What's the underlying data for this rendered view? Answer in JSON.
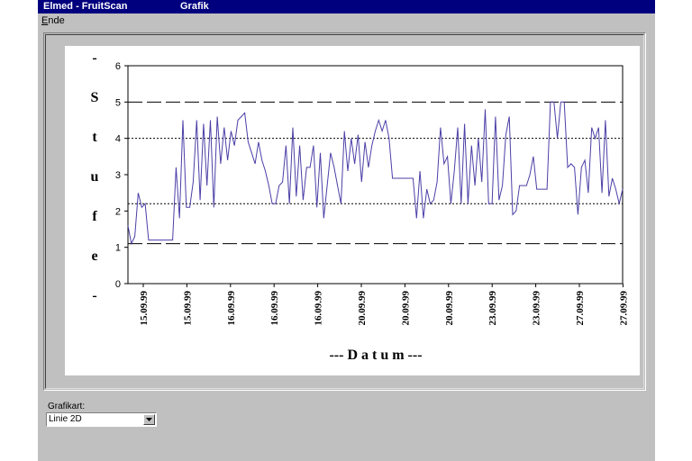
{
  "window": {
    "app_title": "Elmed - FruitScan",
    "section_title": "Grafik"
  },
  "menu": {
    "items": [
      {
        "label": "Ende",
        "mnemonic": "E",
        "rest": "nde"
      }
    ]
  },
  "chart_type_selector": {
    "label": "Grafikart:",
    "value": "Linie 2D"
  },
  "chart_data": {
    "type": "line",
    "ylabel": "- S t u f e -",
    "xlabel": "--- D a t u m ---",
    "ylim": [
      0,
      6
    ],
    "y_ticks": [
      "0",
      "1",
      "2",
      "3",
      "4",
      "5",
      "6"
    ],
    "x_tick_labels": [
      "15.09.99",
      "15.09.99",
      "16.09.99",
      "16.09.99",
      "16.09.99",
      "20.09.99",
      "20.09.99",
      "20.09.99",
      "23.09.99",
      "23.09.99",
      "27.09.99",
      "27.09.99"
    ],
    "reference_lines": [
      {
        "y": 5.0,
        "style": "dashed"
      },
      {
        "y": 4.0,
        "style": "dotted"
      },
      {
        "y": 2.2,
        "style": "dotted"
      },
      {
        "y": 1.1,
        "style": "dashed"
      }
    ],
    "line_color": "#4b3fa6",
    "grid": false,
    "series": [
      {
        "values": [
          1.6,
          1.1,
          1.3,
          2.5,
          2.1,
          2.2,
          1.2,
          1.2,
          1.2,
          1.2,
          1.2,
          1.2,
          1.2,
          1.2,
          3.2,
          1.8,
          4.5,
          2.1,
          2.1,
          2.8,
          4.5,
          2.3,
          4.4,
          2.7,
          4.5,
          2.1,
          4.6,
          3.3,
          4.3,
          3.4,
          4.2,
          3.8,
          4.5,
          4.6,
          4.7,
          3.9,
          3.6,
          3.3,
          3.9,
          3.4,
          3.1,
          2.7,
          2.2,
          2.2,
          2.7,
          2.8,
          3.8,
          2.2,
          4.3,
          2.4,
          3.8,
          2.3,
          3.2,
          3.2,
          3.8,
          2.1,
          3.6,
          1.8,
          2.7,
          3.6,
          3.2,
          2.7,
          2.2,
          4.2,
          3.1,
          4.0,
          3.3,
          4.1,
          2.8,
          3.9,
          3.2,
          3.8,
          4.2,
          4.5,
          4.2,
          4.5,
          4.0,
          2.9,
          2.9,
          2.9,
          2.9,
          2.9,
          2.9,
          2.9,
          1.8,
          3.1,
          1.8,
          2.6,
          2.2,
          2.3,
          2.8,
          4.3,
          3.3,
          3.5,
          2.2,
          3.1,
          4.3,
          2.2,
          4.4,
          2.2,
          3.8,
          2.7,
          4.0,
          2.8,
          4.8,
          2.2,
          2.2,
          4.6,
          2.3,
          2.7,
          4.1,
          4.6,
          1.9,
          2.0,
          2.7,
          2.7,
          2.7,
          3.0,
          3.5,
          2.6,
          2.6,
          2.6,
          2.6,
          5.0,
          5.0,
          4.0,
          5.0,
          5.0,
          3.2,
          3.3,
          3.2,
          1.9,
          3.2,
          3.4,
          2.5,
          4.3,
          4.0,
          4.3,
          2.5,
          4.5,
          2.4,
          2.9,
          2.6,
          2.2,
          2.6
        ]
      }
    ]
  }
}
